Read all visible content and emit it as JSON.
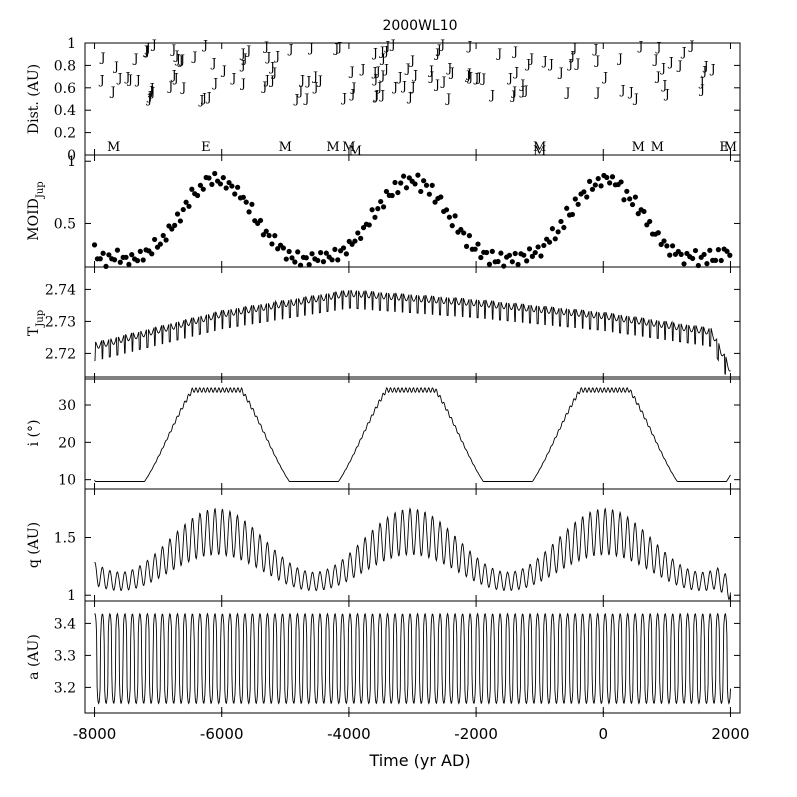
{
  "chart_data": {
    "type": "line",
    "title": "2000WL10",
    "xlabel": "Time (yr AD)",
    "xlim": [
      -8150,
      2150
    ],
    "x_ticks": [
      "-8000",
      "-6000",
      "-4000",
      "-2000",
      "0",
      "2000"
    ],
    "panels": [
      {
        "ylabel": "Dist. (AU)",
        "type": "scatter",
        "marker_label": "J",
        "ylim": [
          0,
          1
        ],
        "y_ticks": [
          "1",
          "0.8",
          "0.6",
          "0.4",
          "0.2",
          "0"
        ],
        "encounters": [
          {
            "x": -7700,
            "label": "M"
          },
          {
            "x": -6250,
            "label": "E"
          },
          {
            "x": -5000,
            "label": "M"
          },
          {
            "x": -4250,
            "label": "M"
          },
          {
            "x": -4000,
            "label": "M"
          },
          {
            "x": -3900,
            "label": "M"
          },
          {
            "x": -1000,
            "label": "M"
          },
          {
            "x": -1000,
            "label": "M"
          },
          {
            "x": 550,
            "label": "M"
          },
          {
            "x": 850,
            "label": "M"
          },
          {
            "x": 1900,
            "label": "E"
          },
          {
            "x": 2000,
            "label": "M"
          }
        ]
      },
      {
        "ylabel_main": "MOID",
        "ylabel_sub": "Jup",
        "type": "scatter",
        "ylim": [
          0.15,
          1.05
        ],
        "y_ticks": [
          "1",
          "0.5"
        ],
        "period": 3050,
        "phase": -7600,
        "min": 0.22,
        "max": 0.85,
        "ripple_amp": 0.05,
        "ripple_period": 118
      },
      {
        "ylabel_main": "T",
        "ylabel_sub": "Jup",
        "type": "line",
        "ylim": [
          2.712,
          2.747
        ],
        "y_ticks": [
          "2.74",
          "2.73",
          "2.72"
        ],
        "trend": [
          [
            -8000,
            2.7225
          ],
          [
            -6000,
            2.7325
          ],
          [
            -4000,
            2.739
          ],
          [
            -2000,
            2.736
          ],
          [
            0,
            2.732
          ],
          [
            1700,
            2.727
          ],
          [
            2000,
            2.715
          ]
        ],
        "ripple_amp": 0.004,
        "ripple_period": 118
      },
      {
        "ylabel": "i (°)",
        "type": "line",
        "ylim": [
          7.5,
          37.5
        ],
        "y_ticks": [
          "30",
          "20",
          "10"
        ],
        "period": 3050,
        "phase": -7600,
        "min": 9.5,
        "max": 34
      },
      {
        "ylabel": "q (AU)",
        "type": "line",
        "ylim": [
          0.95,
          1.92
        ],
        "y_ticks": [
          "1.5",
          "1"
        ],
        "period": 3050,
        "phase": -7600,
        "base_low": 1.12,
        "base_high": 1.55,
        "ripple_amp": 0.2,
        "ripple_period": 118
      },
      {
        "ylabel": "a (AU)",
        "type": "line",
        "ylim": [
          3.12,
          3.47
        ],
        "y_ticks": [
          "3.4",
          "3.3",
          "3.2"
        ],
        "high": 3.43,
        "low": 3.15,
        "ripple_period": 118
      }
    ]
  }
}
